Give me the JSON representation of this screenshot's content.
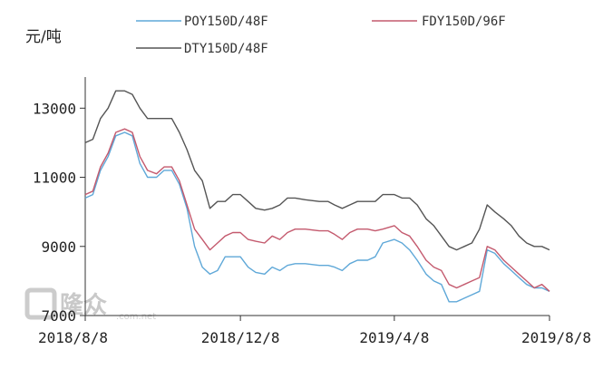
{
  "chart_data": {
    "type": "line",
    "ylabel": "元/吨",
    "y_ticks": [
      7000,
      9000,
      11000,
      13000
    ],
    "y_tick_labels": [
      "7000",
      "9000",
      "11000",
      "13000"
    ],
    "ylim": [
      7000,
      13900
    ],
    "x_range": [
      "2018-08-08",
      "2019-08-08"
    ],
    "x_ticks": [
      "2018-08-08",
      "2018-12-08",
      "2019-04-08",
      "2019-08-08"
    ],
    "x_tick_labels": [
      "2018/8/8",
      "2018/12/8",
      "2019/4/8",
      "2019/8/8"
    ],
    "grid": false,
    "legend_position": "top",
    "series": [
      {
        "name": "POY150D/48F",
        "color": "#5fa8d8",
        "points": [
          [
            "2018-08-08",
            10400
          ],
          [
            "2018-08-14",
            10500
          ],
          [
            "2018-08-20",
            11200
          ],
          [
            "2018-08-26",
            11600
          ],
          [
            "2018-09-01",
            12200
          ],
          [
            "2018-09-08",
            12300
          ],
          [
            "2018-09-14",
            12200
          ],
          [
            "2018-09-20",
            11400
          ],
          [
            "2018-09-26",
            11000
          ],
          [
            "2018-10-03",
            11000
          ],
          [
            "2018-10-09",
            11200
          ],
          [
            "2018-10-15",
            11200
          ],
          [
            "2018-10-21",
            10800
          ],
          [
            "2018-10-27",
            10100
          ],
          [
            "2018-11-02",
            9000
          ],
          [
            "2018-11-08",
            8400
          ],
          [
            "2018-11-14",
            8200
          ],
          [
            "2018-11-20",
            8300
          ],
          [
            "2018-11-26",
            8700
          ],
          [
            "2018-12-02",
            8700
          ],
          [
            "2018-12-08",
            8700
          ],
          [
            "2018-12-14",
            8400
          ],
          [
            "2018-12-20",
            8250
          ],
          [
            "2018-12-27",
            8200
          ],
          [
            "2019-01-02",
            8400
          ],
          [
            "2019-01-08",
            8300
          ],
          [
            "2019-01-14",
            8450
          ],
          [
            "2019-01-20",
            8500
          ],
          [
            "2019-01-28",
            8500
          ],
          [
            "2019-02-08",
            8450
          ],
          [
            "2019-02-15",
            8450
          ],
          [
            "2019-02-20",
            8400
          ],
          [
            "2019-02-26",
            8300
          ],
          [
            "2019-03-04",
            8500
          ],
          [
            "2019-03-10",
            8600
          ],
          [
            "2019-03-18",
            8600
          ],
          [
            "2019-03-24",
            8700
          ],
          [
            "2019-03-30",
            9100
          ],
          [
            "2019-04-08",
            9200
          ],
          [
            "2019-04-14",
            9100
          ],
          [
            "2019-04-20",
            8900
          ],
          [
            "2019-04-26",
            8600
          ],
          [
            "2019-05-03",
            8200
          ],
          [
            "2019-05-09",
            8000
          ],
          [
            "2019-05-15",
            7900
          ],
          [
            "2019-05-21",
            7400
          ],
          [
            "2019-05-27",
            7400
          ],
          [
            "2019-06-02",
            7500
          ],
          [
            "2019-06-08",
            7600
          ],
          [
            "2019-06-14",
            7700
          ],
          [
            "2019-06-20",
            8900
          ],
          [
            "2019-06-26",
            8800
          ],
          [
            "2019-07-03",
            8500
          ],
          [
            "2019-07-09",
            8300
          ],
          [
            "2019-07-15",
            8100
          ],
          [
            "2019-07-21",
            7900
          ],
          [
            "2019-07-27",
            7800
          ],
          [
            "2019-08-02",
            7800
          ],
          [
            "2019-08-08",
            7700
          ]
        ]
      },
      {
        "name": "FDY150D/96F",
        "color": "#c45a6e",
        "points": [
          [
            "2018-08-08",
            10500
          ],
          [
            "2018-08-14",
            10600
          ],
          [
            "2018-08-20",
            11300
          ],
          [
            "2018-08-26",
            11700
          ],
          [
            "2018-09-01",
            12300
          ],
          [
            "2018-09-08",
            12400
          ],
          [
            "2018-09-14",
            12300
          ],
          [
            "2018-09-20",
            11600
          ],
          [
            "2018-09-26",
            11200
          ],
          [
            "2018-10-03",
            11100
          ],
          [
            "2018-10-09",
            11300
          ],
          [
            "2018-10-15",
            11300
          ],
          [
            "2018-10-21",
            10900
          ],
          [
            "2018-10-27",
            10200
          ],
          [
            "2018-11-02",
            9500
          ],
          [
            "2018-11-08",
            9200
          ],
          [
            "2018-11-14",
            8900
          ],
          [
            "2018-11-20",
            9100
          ],
          [
            "2018-11-26",
            9300
          ],
          [
            "2018-12-02",
            9400
          ],
          [
            "2018-12-08",
            9400
          ],
          [
            "2018-12-14",
            9200
          ],
          [
            "2018-12-20",
            9150
          ],
          [
            "2018-12-27",
            9100
          ],
          [
            "2019-01-02",
            9300
          ],
          [
            "2019-01-08",
            9200
          ],
          [
            "2019-01-14",
            9400
          ],
          [
            "2019-01-20",
            9500
          ],
          [
            "2019-01-28",
            9500
          ],
          [
            "2019-02-08",
            9450
          ],
          [
            "2019-02-15",
            9450
          ],
          [
            "2019-02-20",
            9350
          ],
          [
            "2019-02-26",
            9200
          ],
          [
            "2019-03-04",
            9400
          ],
          [
            "2019-03-10",
            9500
          ],
          [
            "2019-03-18",
            9500
          ],
          [
            "2019-03-24",
            9450
          ],
          [
            "2019-03-30",
            9500
          ],
          [
            "2019-04-08",
            9600
          ],
          [
            "2019-04-14",
            9400
          ],
          [
            "2019-04-20",
            9300
          ],
          [
            "2019-04-26",
            9000
          ],
          [
            "2019-05-03",
            8600
          ],
          [
            "2019-05-09",
            8400
          ],
          [
            "2019-05-15",
            8300
          ],
          [
            "2019-05-21",
            7900
          ],
          [
            "2019-05-27",
            7800
          ],
          [
            "2019-06-02",
            7900
          ],
          [
            "2019-06-08",
            8000
          ],
          [
            "2019-06-14",
            8100
          ],
          [
            "2019-06-20",
            9000
          ],
          [
            "2019-06-26",
            8900
          ],
          [
            "2019-07-03",
            8600
          ],
          [
            "2019-07-09",
            8400
          ],
          [
            "2019-07-15",
            8200
          ],
          [
            "2019-07-21",
            8000
          ],
          [
            "2019-07-27",
            7800
          ],
          [
            "2019-08-02",
            7900
          ],
          [
            "2019-08-08",
            7700
          ]
        ]
      },
      {
        "name": "DTY150D/48F",
        "color": "#555555",
        "points": [
          [
            "2018-08-08",
            12000
          ],
          [
            "2018-08-14",
            12100
          ],
          [
            "2018-08-20",
            12700
          ],
          [
            "2018-08-26",
            13000
          ],
          [
            "2018-09-01",
            13500
          ],
          [
            "2018-09-08",
            13500
          ],
          [
            "2018-09-14",
            13400
          ],
          [
            "2018-09-20",
            13000
          ],
          [
            "2018-09-26",
            12700
          ],
          [
            "2018-10-03",
            12700
          ],
          [
            "2018-10-09",
            12700
          ],
          [
            "2018-10-15",
            12700
          ],
          [
            "2018-10-21",
            12300
          ],
          [
            "2018-10-27",
            11800
          ],
          [
            "2018-11-02",
            11200
          ],
          [
            "2018-11-08",
            10900
          ],
          [
            "2018-11-14",
            10100
          ],
          [
            "2018-11-20",
            10300
          ],
          [
            "2018-11-26",
            10300
          ],
          [
            "2018-12-02",
            10500
          ],
          [
            "2018-12-08",
            10500
          ],
          [
            "2018-12-14",
            10300
          ],
          [
            "2018-12-20",
            10100
          ],
          [
            "2018-12-27",
            10050
          ],
          [
            "2019-01-02",
            10100
          ],
          [
            "2019-01-08",
            10200
          ],
          [
            "2019-01-14",
            10400
          ],
          [
            "2019-01-20",
            10400
          ],
          [
            "2019-01-28",
            10350
          ],
          [
            "2019-02-08",
            10300
          ],
          [
            "2019-02-15",
            10300
          ],
          [
            "2019-02-20",
            10200
          ],
          [
            "2019-02-26",
            10100
          ],
          [
            "2019-03-04",
            10200
          ],
          [
            "2019-03-10",
            10300
          ],
          [
            "2019-03-18",
            10300
          ],
          [
            "2019-03-24",
            10300
          ],
          [
            "2019-03-30",
            10500
          ],
          [
            "2019-04-08",
            10500
          ],
          [
            "2019-04-14",
            10400
          ],
          [
            "2019-04-20",
            10400
          ],
          [
            "2019-04-26",
            10200
          ],
          [
            "2019-05-03",
            9800
          ],
          [
            "2019-05-09",
            9600
          ],
          [
            "2019-05-15",
            9300
          ],
          [
            "2019-05-21",
            9000
          ],
          [
            "2019-05-27",
            8900
          ],
          [
            "2019-06-02",
            9000
          ],
          [
            "2019-06-08",
            9100
          ],
          [
            "2019-06-14",
            9500
          ],
          [
            "2019-06-20",
            10200
          ],
          [
            "2019-06-26",
            10000
          ],
          [
            "2019-07-03",
            9800
          ],
          [
            "2019-07-09",
            9600
          ],
          [
            "2019-07-15",
            9300
          ],
          [
            "2019-07-21",
            9100
          ],
          [
            "2019-07-27",
            9000
          ],
          [
            "2019-08-02",
            9000
          ],
          [
            "2019-08-08",
            8900
          ]
        ]
      }
    ]
  },
  "watermark": {
    "brand": "隆众",
    "url": ".com.net",
    "color": "#c9c9c9"
  }
}
